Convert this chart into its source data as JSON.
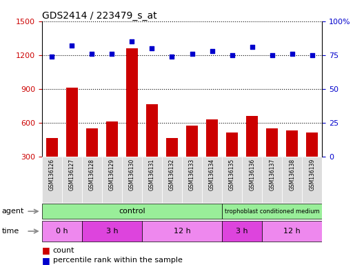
{
  "title": "GDS2414 / 223479_s_at",
  "samples": [
    "GSM136126",
    "GSM136127",
    "GSM136128",
    "GSM136129",
    "GSM136130",
    "GSM136131",
    "GSM136132",
    "GSM136133",
    "GSM136134",
    "GSM136135",
    "GSM136136",
    "GSM136137",
    "GSM136138",
    "GSM136139"
  ],
  "counts": [
    460,
    910,
    550,
    610,
    1260,
    760,
    460,
    570,
    630,
    510,
    660,
    550,
    530,
    510
  ],
  "percentile": [
    74,
    82,
    76,
    76,
    85,
    80,
    74,
    76,
    78,
    75,
    81,
    75,
    76,
    75
  ],
  "ylim_left": [
    300,
    1500
  ],
  "ylim_right": [
    0,
    100
  ],
  "yticks_left": [
    300,
    600,
    900,
    1200,
    1500
  ],
  "yticks_right": [
    0,
    25,
    50,
    75,
    100
  ],
  "bar_color": "#cc0000",
  "dot_color": "#0000cc",
  "bg_color": "#ffffff",
  "tick_label_color_left": "#cc0000",
  "tick_label_color_right": "#0000cc",
  "agent_control_color": "#99ee99",
  "agent_tropho_color": "#99ee99",
  "time_light_color": "#ee88ee",
  "time_dark_color": "#dd44dd",
  "sample_bg_color": "#dddddd",
  "time_groups": [
    {
      "label": "0 h",
      "start": 0,
      "end": 2,
      "light": true
    },
    {
      "label": "3 h",
      "start": 2,
      "end": 5,
      "light": false
    },
    {
      "label": "12 h",
      "start": 5,
      "end": 9,
      "light": true
    },
    {
      "label": "3 h",
      "start": 9,
      "end": 11,
      "light": false
    },
    {
      "label": "12 h",
      "start": 11,
      "end": 14,
      "light": true
    }
  ]
}
